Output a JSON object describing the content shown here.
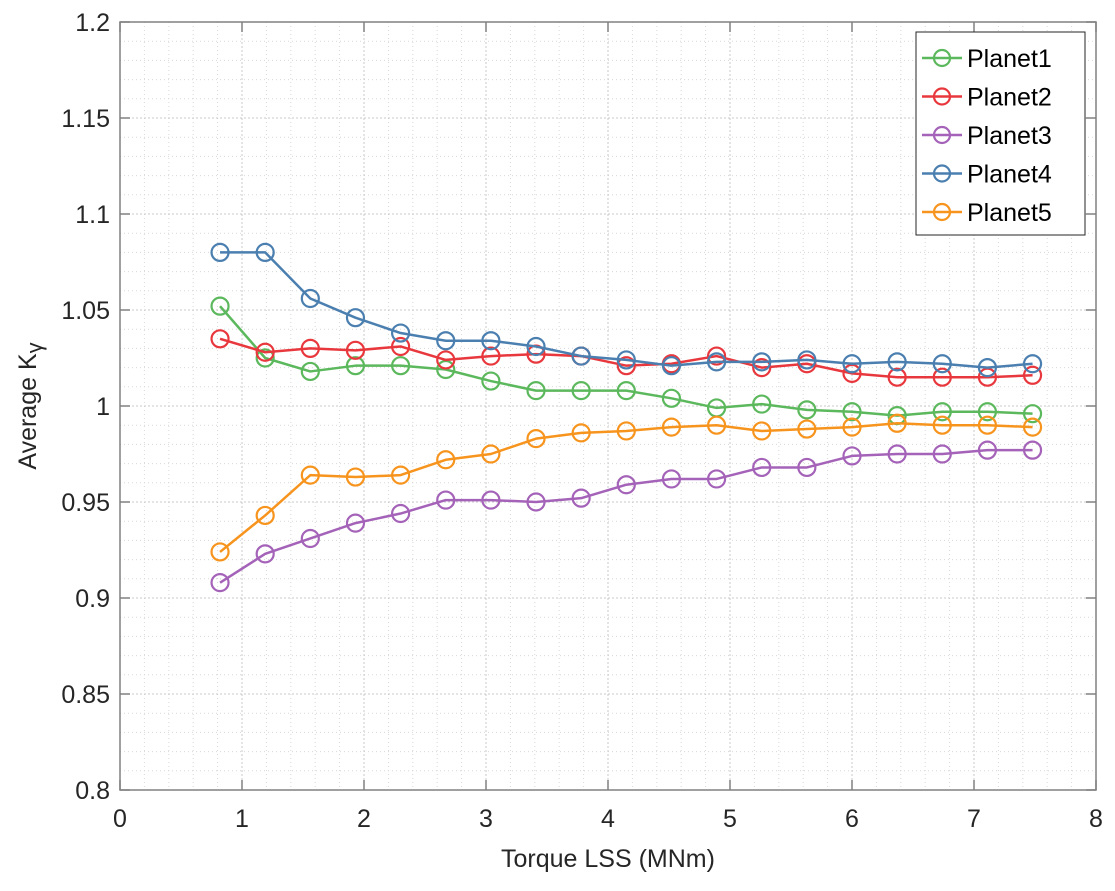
{
  "chart_data": {
    "type": "line",
    "title": "",
    "xlabel": "Torque LSS (MNm)",
    "ylabel": "Average  K",
    "ylabel_subscript": "γ",
    "xlim": [
      0,
      8
    ],
    "ylim": [
      0.8,
      1.2
    ],
    "xticks": [
      0,
      1,
      2,
      3,
      4,
      5,
      6,
      7,
      8
    ],
    "xtick_labels": [
      "0",
      "1",
      "2",
      "3",
      "4",
      "5",
      "6",
      "7",
      "8"
    ],
    "yticks": [
      0.8,
      0.85,
      0.9,
      0.95,
      1.0,
      1.05,
      1.1,
      1.15,
      1.2
    ],
    "ytick_labels": [
      "0.8",
      "0.85",
      "0.9",
      "0.95",
      "1",
      "1.05",
      "1.1",
      "1.15",
      "1.2"
    ],
    "grid": true,
    "minor_grid": true,
    "legend_position": "top-right",
    "marker": "circle-open",
    "x": [
      0.82,
      1.19,
      1.56,
      1.93,
      2.3,
      2.67,
      3.04,
      3.41,
      3.78,
      4.15,
      4.52,
      4.89,
      5.26,
      5.63,
      6.0,
      6.37,
      6.74,
      7.11,
      7.48
    ],
    "series": [
      {
        "name": "Planet1",
        "color": "#5cb85c",
        "values": [
          1.052,
          1.025,
          1.018,
          1.021,
          1.021,
          1.019,
          1.013,
          1.008,
          1.008,
          1.008,
          1.004,
          0.999,
          1.001,
          0.998,
          0.997,
          0.995,
          0.997,
          0.997,
          0.996
        ]
      },
      {
        "name": "Planet2",
        "color": "#e8383d",
        "values": [
          1.035,
          1.028,
          1.03,
          1.029,
          1.031,
          1.024,
          1.026,
          1.027,
          1.026,
          1.021,
          1.022,
          1.026,
          1.02,
          1.022,
          1.017,
          1.015,
          1.015,
          1.015,
          1.016
        ]
      },
      {
        "name": "Planet3",
        "color": "#a463b8",
        "values": [
          0.908,
          0.923,
          0.931,
          0.939,
          0.944,
          0.951,
          0.951,
          0.95,
          0.952,
          0.959,
          0.962,
          0.962,
          0.968,
          0.968,
          0.974,
          0.975,
          0.975,
          0.977,
          0.977
        ]
      },
      {
        "name": "Planet4",
        "color": "#4a7fb0",
        "values": [
          1.08,
          1.08,
          1.056,
          1.046,
          1.038,
          1.034,
          1.034,
          1.031,
          1.026,
          1.024,
          1.021,
          1.023,
          1.023,
          1.024,
          1.022,
          1.023,
          1.022,
          1.02,
          1.022
        ]
      },
      {
        "name": "Planet5",
        "color": "#f7941d",
        "values": [
          0.924,
          0.943,
          0.964,
          0.963,
          0.964,
          0.972,
          0.975,
          0.983,
          0.986,
          0.987,
          0.989,
          0.99,
          0.987,
          0.988,
          0.989,
          0.991,
          0.99,
          0.99,
          0.989
        ]
      }
    ]
  }
}
